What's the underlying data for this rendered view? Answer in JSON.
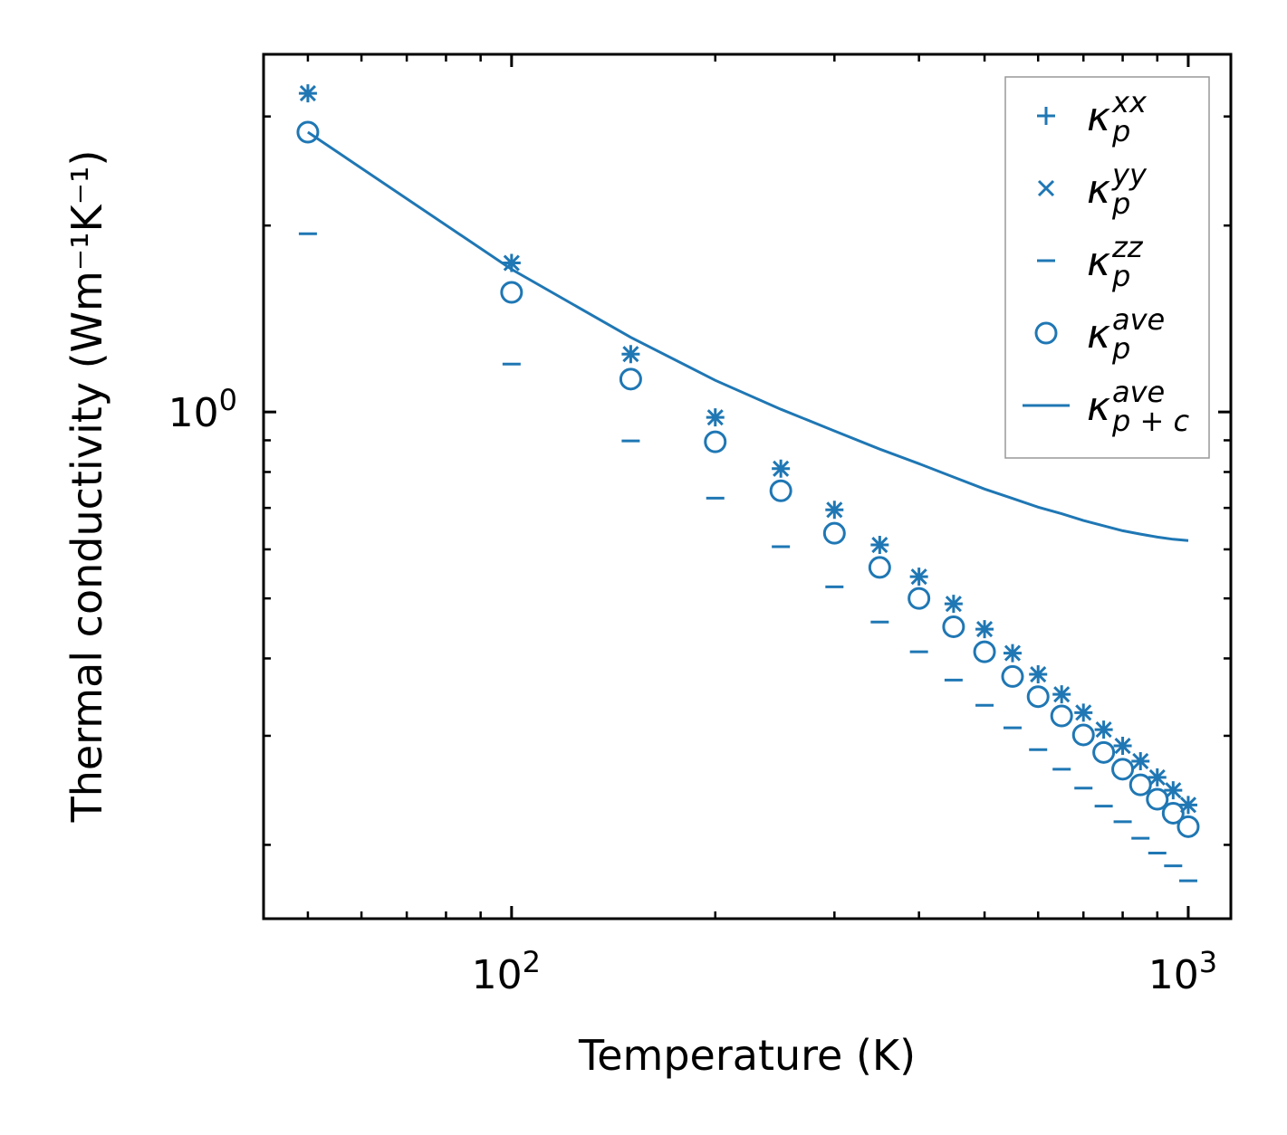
{
  "chart_data": {
    "type": "scatter",
    "xlabel": "Temperature (K)",
    "ylabel": "Thermal conductivity (Wm⁻¹K⁻¹)",
    "xscale": "log",
    "yscale": "log",
    "xlim": [
      43,
      1156
    ],
    "ylim": [
      0.152,
      3.78
    ],
    "x_ticks": [
      {
        "value": 100,
        "base": "10",
        "exp": "2"
      },
      {
        "value": 1000,
        "base": "10",
        "exp": "3"
      }
    ],
    "y_ticks": [
      {
        "value": 1,
        "base": "10",
        "exp": "0"
      }
    ],
    "grid": false,
    "legend_position": "top-right",
    "color": "#1f77b4",
    "x": [
      50,
      100,
      150,
      200,
      250,
      300,
      350,
      400,
      450,
      500,
      550,
      600,
      650,
      700,
      750,
      800,
      850,
      900,
      950,
      1000
    ],
    "series": [
      {
        "name": "kappa_p^xx",
        "symbol": "κ",
        "sub": "p",
        "sup": "xx",
        "marker": "plus",
        "values": [
          3.27,
          1.74,
          1.24,
          0.98,
          0.81,
          0.695,
          0.61,
          0.542,
          0.49,
          0.446,
          0.408,
          0.377,
          0.35,
          0.327,
          0.307,
          0.289,
          0.273,
          0.257,
          0.245,
          0.232
        ]
      },
      {
        "name": "kappa_p^yy",
        "symbol": "κ",
        "sub": "p",
        "sup": "yy",
        "marker": "x",
        "values": [
          3.27,
          1.74,
          1.24,
          0.98,
          0.81,
          0.695,
          0.61,
          0.542,
          0.49,
          0.446,
          0.408,
          0.377,
          0.35,
          0.327,
          0.307,
          0.289,
          0.273,
          0.257,
          0.245,
          0.232
        ]
      },
      {
        "name": "kappa_p^zz",
        "symbol": "κ",
        "sub": "p",
        "sup": "zz",
        "marker": "hline",
        "values": [
          1.94,
          1.195,
          0.898,
          0.726,
          0.606,
          0.522,
          0.458,
          0.41,
          0.369,
          0.336,
          0.309,
          0.285,
          0.265,
          0.247,
          0.231,
          0.218,
          0.205,
          0.194,
          0.185,
          0.175
        ]
      },
      {
        "name": "kappa_p^ave",
        "symbol": "κ",
        "sub": "p",
        "sup": "ave",
        "marker": "circle",
        "values": [
          2.83,
          1.56,
          1.13,
          0.895,
          0.746,
          0.637,
          0.561,
          0.5,
          0.45,
          0.41,
          0.374,
          0.347,
          0.323,
          0.301,
          0.282,
          0.265,
          0.25,
          0.237,
          0.225,
          0.214
        ]
      },
      {
        "name": "kappa_p+c^ave",
        "symbol": "κ",
        "sub": "p + c",
        "sup": "ave",
        "marker": "line",
        "values": [
          2.83,
          1.7,
          1.32,
          1.125,
          1.01,
          0.932,
          0.871,
          0.825,
          0.785,
          0.751,
          0.725,
          0.702,
          0.685,
          0.668,
          0.655,
          0.643,
          0.635,
          0.628,
          0.623,
          0.62
        ]
      }
    ]
  }
}
